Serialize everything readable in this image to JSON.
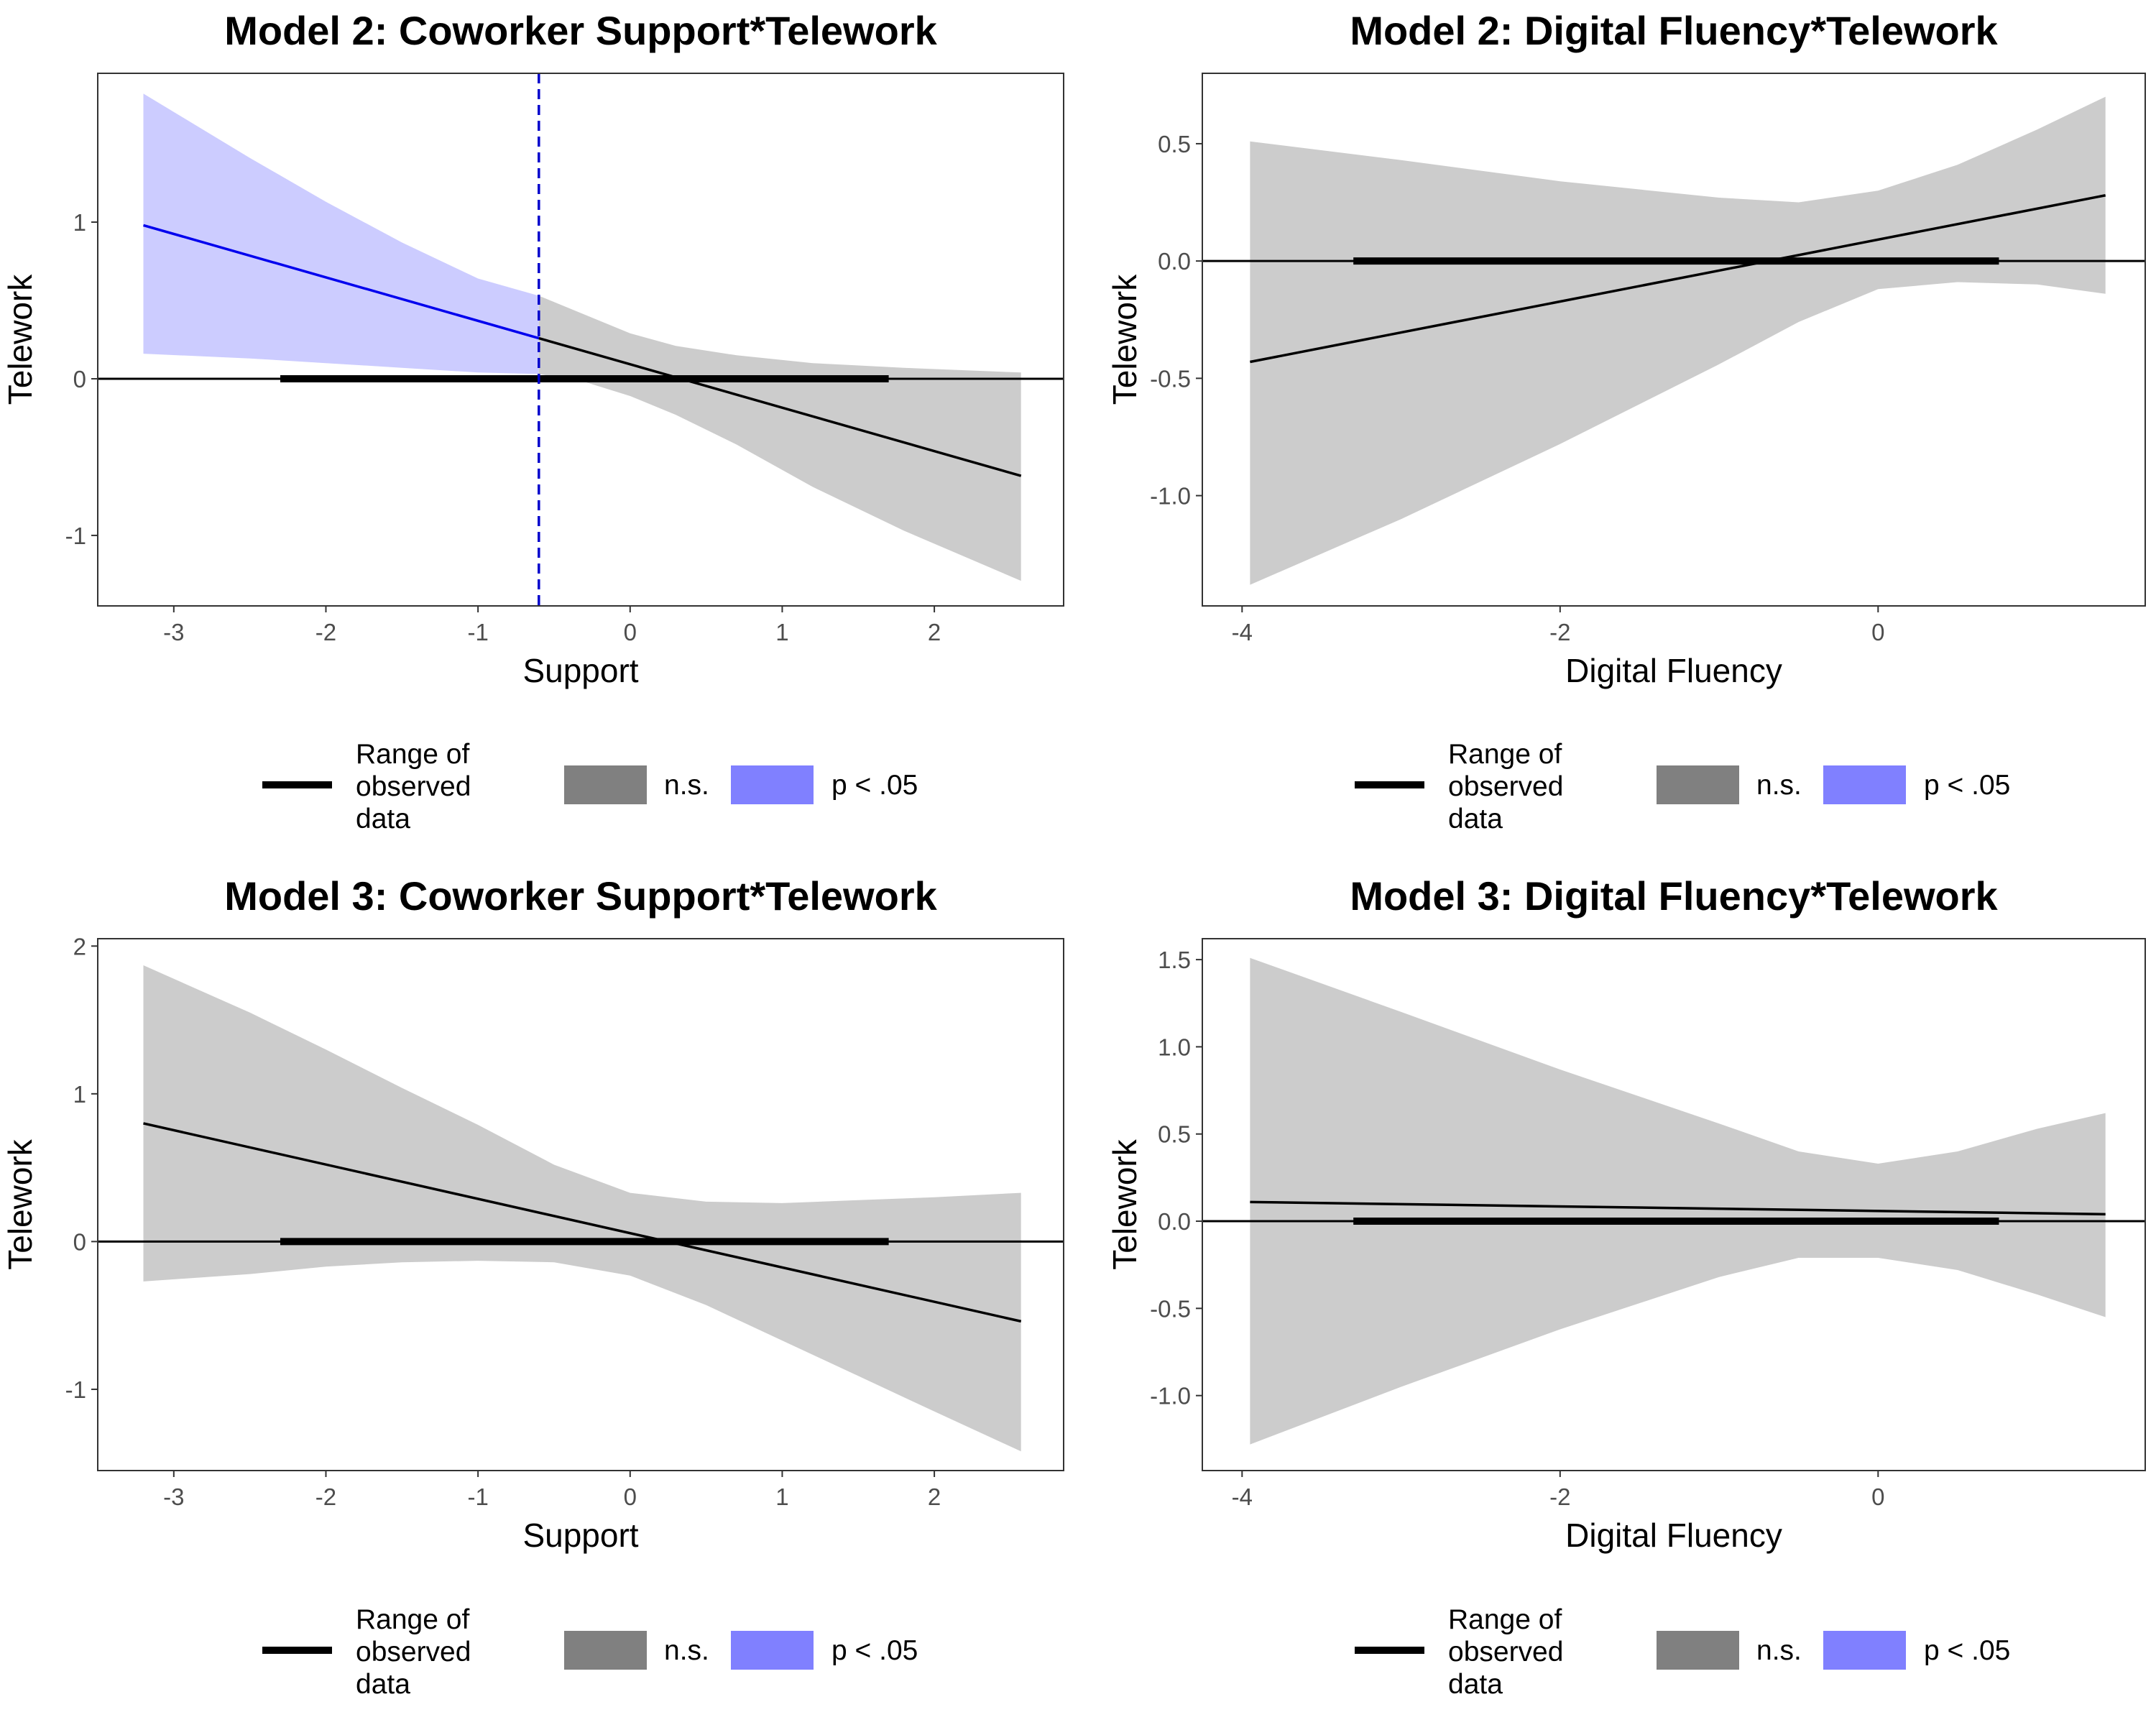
{
  "legend": {
    "range_label": [
      "Range of",
      "observed",
      "data"
    ],
    "ns_label": "n.s.",
    "sig_label": "p < .05",
    "colors": {
      "line": "#000000",
      "ns": "#808080",
      "sig": "#8080ff"
    }
  },
  "colors": {
    "ns_band": "#cccccc",
    "sig_band": "#ccccff",
    "sig_line": "#0000ee",
    "jn_line": "#0000cc",
    "ink": "#000000",
    "tick": "#4d4d4d"
  },
  "chart_data": [
    {
      "type": "line",
      "title": "Model 2: Coworker Support*Telework",
      "xlabel": "Support",
      "ylabel": "Telework",
      "xlim": [
        -3.5,
        2.85
      ],
      "ylim": [
        -1.45,
        1.95
      ],
      "xticks": [
        -3,
        -2,
        -1,
        0,
        1,
        2
      ],
      "xtick_labels": [
        "-3",
        "-2",
        "-1",
        "0",
        "1",
        "2"
      ],
      "yticks": [
        -1,
        0,
        1
      ],
      "ytick_labels": [
        "-1",
        "0",
        "1"
      ],
      "grid": false,
      "legend_position": "bottom",
      "slope": {
        "x": [
          -3.2,
          2.57
        ],
        "y": [
          0.98,
          -0.62
        ]
      },
      "ci_upper": {
        "x": [
          -3.2,
          -2.5,
          -2.0,
          -1.5,
          -1.0,
          -0.6,
          -0.3,
          0.0,
          0.3,
          0.7,
          1.2,
          1.8,
          2.57
        ],
        "y": [
          1.82,
          1.41,
          1.13,
          0.87,
          0.64,
          0.53,
          0.41,
          0.29,
          0.21,
          0.15,
          0.1,
          0.07,
          0.04
        ]
      },
      "ci_lower": {
        "x": [
          -3.2,
          -2.5,
          -2.0,
          -1.5,
          -1.0,
          -0.6,
          -0.3,
          0.0,
          0.3,
          0.7,
          1.2,
          1.8,
          2.57
        ],
        "y": [
          0.16,
          0.13,
          0.1,
          0.07,
          0.04,
          0.03,
          -0.02,
          -0.11,
          -0.23,
          -0.42,
          -0.69,
          -0.97,
          -1.29
        ]
      },
      "significant_below_x": -0.6,
      "jn_point": -0.6,
      "observed_range": [
        -2.3,
        1.7
      ]
    },
    {
      "type": "line",
      "title": "Model 2: Digital Fluency*Telework",
      "xlabel": "Digital Fluency",
      "ylabel": "Telework",
      "xlim": [
        -4.25,
        1.68
      ],
      "ylim": [
        -1.47,
        0.8
      ],
      "xticks": [
        -4,
        -2,
        0
      ],
      "xtick_labels": [
        "-4",
        "-2",
        "0"
      ],
      "yticks": [
        -1.0,
        -0.5,
        0.0,
        0.5
      ],
      "ytick_labels": [
        "-1.0",
        "-0.5",
        "0.0",
        "0.5"
      ],
      "grid": false,
      "legend_position": "bottom",
      "slope": {
        "x": [
          -3.95,
          1.43
        ],
        "y": [
          -0.43,
          0.28
        ]
      },
      "ci_upper": {
        "x": [
          -3.95,
          -3.0,
          -2.0,
          -1.0,
          -0.5,
          0.0,
          0.5,
          1.0,
          1.43
        ],
        "y": [
          0.51,
          0.43,
          0.34,
          0.27,
          0.25,
          0.3,
          0.41,
          0.56,
          0.7
        ]
      },
      "ci_lower": {
        "x": [
          -3.95,
          -3.0,
          -2.0,
          -1.0,
          -0.5,
          0.0,
          0.5,
          1.0,
          1.43
        ],
        "y": [
          -1.38,
          -1.1,
          -0.78,
          -0.44,
          -0.26,
          -0.12,
          -0.09,
          -0.1,
          -0.14
        ]
      },
      "significant_below_x": null,
      "jn_point": null,
      "observed_range": [
        -3.3,
        0.76
      ]
    },
    {
      "type": "line",
      "title": "Model 3: Coworker Support*Telework",
      "xlabel": "Support",
      "ylabel": "Telework",
      "xlim": [
        -3.5,
        2.85
      ],
      "ylim": [
        -1.55,
        2.05
      ],
      "xticks": [
        -3,
        -2,
        -1,
        0,
        1,
        2
      ],
      "xtick_labels": [
        "-3",
        "-2",
        "-1",
        "0",
        "1",
        "2"
      ],
      "yticks": [
        -1,
        0,
        1,
        2
      ],
      "ytick_labels": [
        "-1",
        "0",
        "1",
        "2"
      ],
      "grid": false,
      "legend_position": "bottom",
      "slope": {
        "x": [
          -3.2,
          2.57
        ],
        "y": [
          0.8,
          -0.54
        ]
      },
      "ci_upper": {
        "x": [
          -3.2,
          -2.5,
          -2.0,
          -1.5,
          -1.0,
          -0.5,
          0.0,
          0.5,
          1.0,
          1.5,
          2.0,
          2.57
        ],
        "y": [
          1.87,
          1.55,
          1.3,
          1.04,
          0.79,
          0.52,
          0.33,
          0.27,
          0.26,
          0.28,
          0.3,
          0.33
        ]
      },
      "ci_lower": {
        "x": [
          -3.2,
          -2.5,
          -2.0,
          -1.5,
          -1.0,
          -0.5,
          0.0,
          0.5,
          1.0,
          1.5,
          2.0,
          2.57
        ],
        "y": [
          -0.27,
          -0.22,
          -0.17,
          -0.14,
          -0.13,
          -0.14,
          -0.23,
          -0.43,
          -0.67,
          -0.91,
          -1.15,
          -1.42
        ]
      },
      "significant_below_x": null,
      "jn_point": null,
      "observed_range": [
        -2.3,
        1.7
      ]
    },
    {
      "type": "line",
      "title": "Model 3: Digital Fluency*Telework",
      "xlabel": "Digital Fluency",
      "ylabel": "Telework",
      "xlim": [
        -4.25,
        1.68
      ],
      "ylim": [
        -1.43,
        1.62
      ],
      "xticks": [
        -4,
        -2,
        0
      ],
      "xtick_labels": [
        "-4",
        "-2",
        "0"
      ],
      "yticks": [
        -1.0,
        -0.5,
        0.0,
        0.5,
        1.0,
        1.5
      ],
      "ytick_labels": [
        "-1.0",
        "-0.5",
        "0.0",
        "0.5",
        "1.0",
        "1.5"
      ],
      "grid": false,
      "legend_position": "bottom",
      "slope": {
        "x": [
          -3.95,
          1.43
        ],
        "y": [
          0.11,
          0.04
        ]
      },
      "ci_upper": {
        "x": [
          -3.95,
          -3.0,
          -2.0,
          -1.0,
          -0.5,
          0.0,
          0.5,
          1.0,
          1.43
        ],
        "y": [
          1.51,
          1.2,
          0.87,
          0.56,
          0.4,
          0.33,
          0.4,
          0.53,
          0.62
        ]
      },
      "ci_lower": {
        "x": [
          -3.95,
          -3.0,
          -2.0,
          -1.0,
          -0.5,
          0.0,
          0.5,
          1.0,
          1.43
        ],
        "y": [
          -1.28,
          -0.95,
          -0.62,
          -0.32,
          -0.21,
          -0.21,
          -0.28,
          -0.42,
          -0.55
        ]
      },
      "significant_below_x": null,
      "jn_point": null,
      "observed_range": [
        -3.3,
        0.76
      ]
    }
  ]
}
